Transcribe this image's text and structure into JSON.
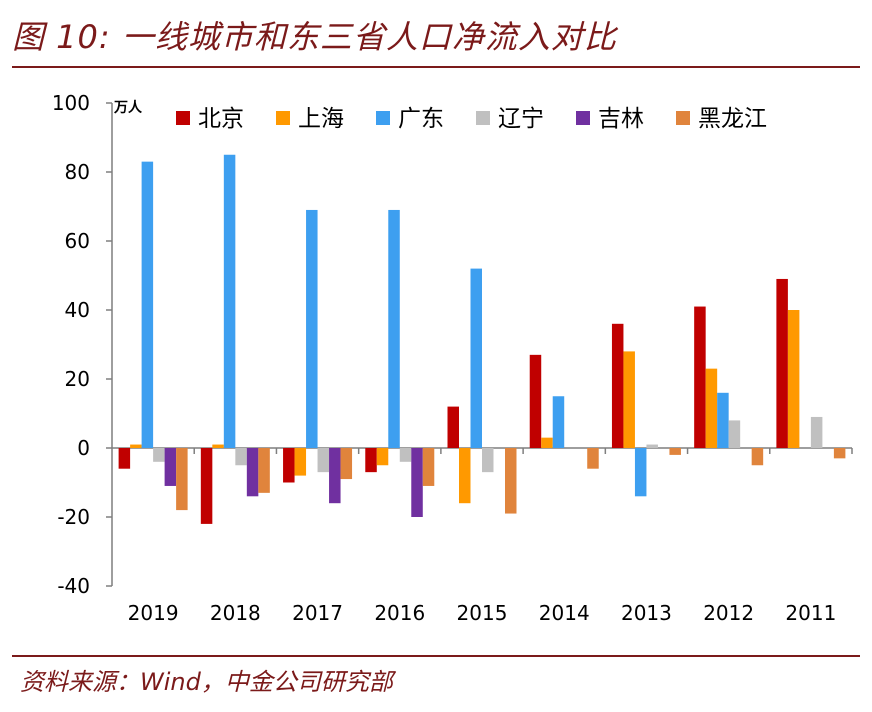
{
  "header": {
    "title": "图 10: 一线城市和东三省人口净流入对比"
  },
  "footer": {
    "source": "资料来源：Wind，中金公司研究部"
  },
  "chart_data": {
    "type": "bar",
    "title": "图 10: 一线城市和东三省人口净流入对比",
    "unit": "万人",
    "ylim": [
      -40,
      100
    ],
    "yticks": [
      -40,
      -20,
      0,
      20,
      40,
      60,
      80,
      100
    ],
    "categories": [
      "2019",
      "2018",
      "2017",
      "2016",
      "2015",
      "2014",
      "2013",
      "2012",
      "2011"
    ],
    "legend_position": "top",
    "series": [
      {
        "name": "北京",
        "color": "#c00000",
        "values": [
          -6,
          -22,
          -10,
          -7,
          12,
          27,
          36,
          41,
          49
        ]
      },
      {
        "name": "上海",
        "color": "#ff9900",
        "values": [
          1,
          1,
          -8,
          -5,
          -16,
          3,
          28,
          23,
          40
        ]
      },
      {
        "name": "广东",
        "color": "#3d9ff0",
        "values": [
          83,
          85,
          69,
          69,
          52,
          15,
          -14,
          16,
          0
        ]
      },
      {
        "name": "辽宁",
        "color": "#c0c0c0",
        "values": [
          -4,
          -5,
          -7,
          -4,
          -7,
          0,
          1,
          8,
          9
        ]
      },
      {
        "name": "吉林",
        "color": "#7030a0",
        "values": [
          -11,
          -14,
          -16,
          -20,
          0,
          0,
          0,
          0,
          0
        ]
      },
      {
        "name": "黑龙江",
        "color": "#e0843c",
        "values": [
          -18,
          -13,
          -9,
          -11,
          -19,
          -6,
          -2,
          -5,
          -3
        ]
      }
    ]
  }
}
